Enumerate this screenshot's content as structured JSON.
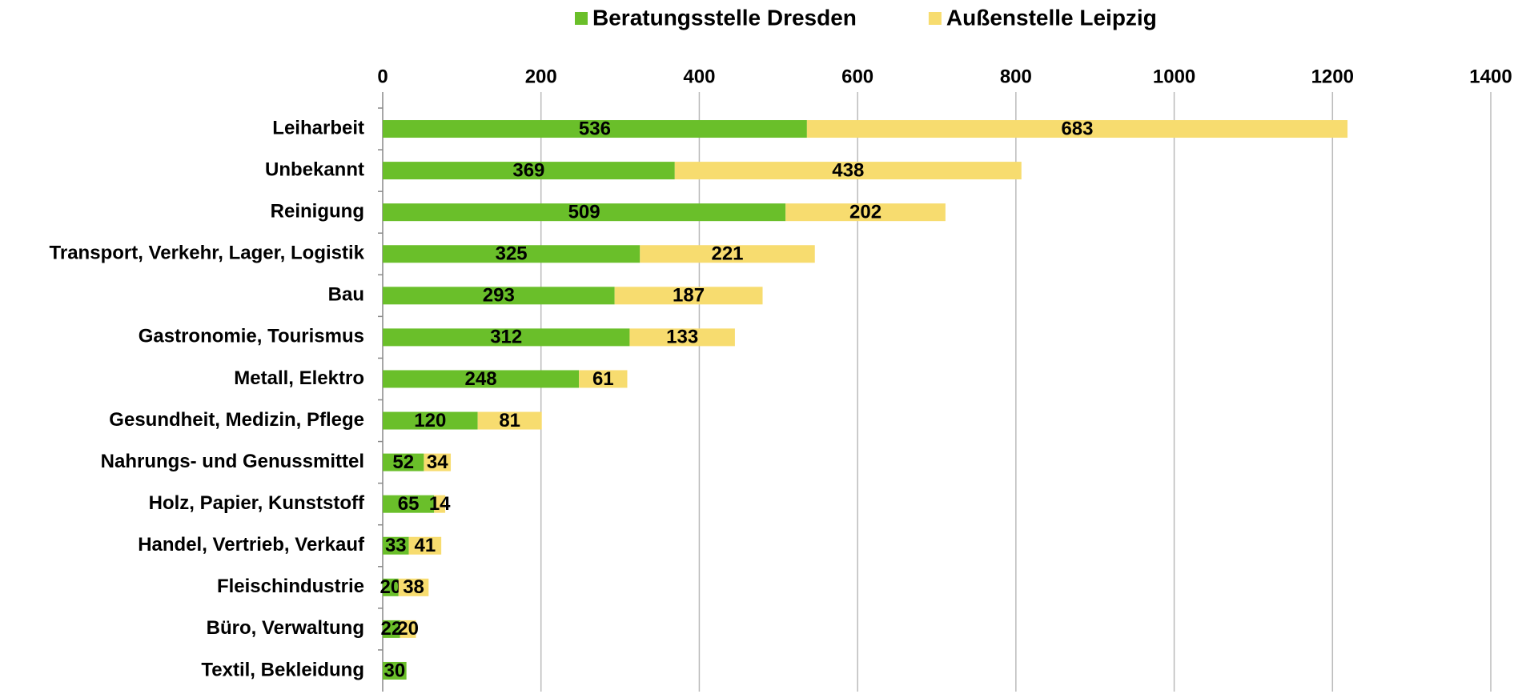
{
  "chart_data": {
    "type": "stacked_barh",
    "categories": [
      "Leiharbeit",
      "Unbekannt",
      "Reinigung",
      "Transport, Verkehr, Lager, Logistik",
      "Bau",
      "Gastronomie, Tourismus",
      "Metall, Elektro",
      "Gesundheit, Medizin, Pflege",
      "Nahrungs- und Genussmittel",
      "Holz, Papier, Kunststoff",
      "Handel, Vertrieb, Verkauf",
      "Fleischindustrie",
      "Büro, Verwaltung",
      "Textil, Bekleidung"
    ],
    "series": [
      {
        "name": "Beratungsstelle Dresden",
        "color": "#6abf2a",
        "values": [
          536,
          369,
          509,
          325,
          293,
          312,
          248,
          120,
          52,
          65,
          33,
          20,
          22,
          30
        ]
      },
      {
        "name": "Außenstelle Leipzig",
        "color": "#f7dc6f",
        "values": [
          683,
          438,
          202,
          221,
          187,
          133,
          61,
          81,
          34,
          14,
          41,
          38,
          20,
          null
        ]
      }
    ],
    "xlim": [
      0,
      1400
    ],
    "xticks": [
      0,
      200,
      400,
      600,
      800,
      1000,
      1200,
      1400
    ],
    "grid": true,
    "legend": "top"
  }
}
